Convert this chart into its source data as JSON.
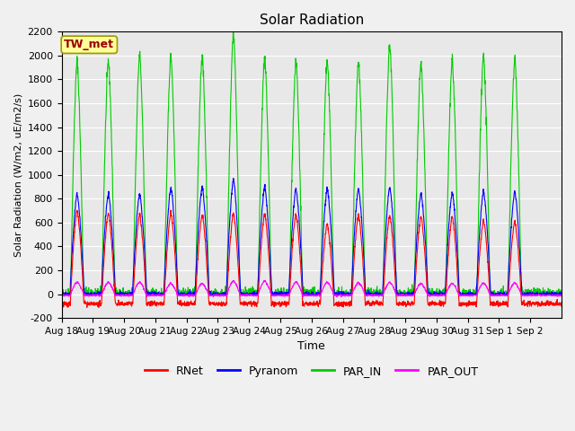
{
  "title": "Solar Radiation",
  "ylabel": "Solar Radiation (W/m2, uE/m2/s)",
  "xlabel": "Time",
  "ylim": [
    -200,
    2200
  ],
  "yticks": [
    -200,
    0,
    200,
    400,
    600,
    800,
    1000,
    1200,
    1400,
    1600,
    1800,
    2000,
    2200
  ],
  "num_days": 16,
  "colors": {
    "RNet": "#ff0000",
    "Pyranom": "#0000ff",
    "PAR_IN": "#00cc00",
    "PAR_OUT": "#ff00ff"
  },
  "site_label": "TW_met",
  "site_label_facecolor": "#ffff99",
  "site_label_edgecolor": "#999900",
  "site_label_textcolor": "#990000",
  "plot_bg": "#e8e8e8",
  "fig_bg": "#f0f0f0",
  "grid_color": "white",
  "fig_width": 6.4,
  "fig_height": 4.8,
  "dpi": 100,
  "x_tick_labels": [
    "Aug 18",
    "Aug 19",
    "Aug 20",
    "Aug 21",
    "Aug 22",
    "Aug 23",
    "Aug 24",
    "Aug 25",
    "Aug 26",
    "Aug 27",
    "Aug 28",
    "Aug 29",
    "Aug 30",
    "Aug 31",
    "Sep 1",
    "Sep 2"
  ],
  "par_in_peaks": [
    1960,
    1960,
    2020,
    2010,
    2010,
    2200,
    2000,
    1960,
    1960,
    1960,
    2100,
    1940,
    1970,
    2010,
    1990,
    0
  ],
  "pyranom_peaks": [
    840,
    840,
    840,
    890,
    900,
    960,
    900,
    880,
    880,
    880,
    900,
    840,
    850,
    860,
    860,
    0
  ],
  "rnet_peaks": [
    700,
    680,
    670,
    680,
    670,
    680,
    670,
    670,
    590,
    660,
    660,
    650,
    650,
    620,
    610,
    0
  ],
  "par_out_peaks": [
    100,
    100,
    100,
    90,
    90,
    110,
    110,
    100,
    100,
    95,
    100,
    90,
    90,
    95,
    95,
    0
  ],
  "rnet_night": -80,
  "par_out_night": -10
}
